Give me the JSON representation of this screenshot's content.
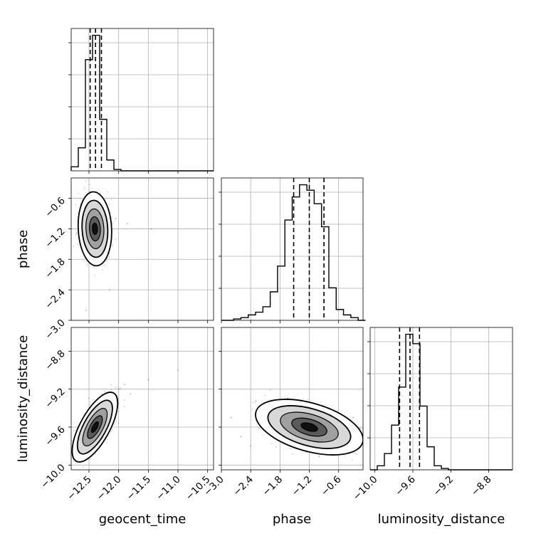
{
  "chart_data": [
    {
      "type": "histogram",
      "parameter": "geocent_time",
      "xlim": [
        -12.8,
        -10.4
      ],
      "xticks": [
        -12.5,
        -12.0,
        -11.5,
        -11.0,
        -10.5
      ],
      "bins": [
        -12.8,
        -12.68,
        -12.56,
        -12.44,
        -12.32,
        -12.2,
        -12.08,
        -11.96,
        -11.84
      ],
      "counts": [
        0.03,
        0.17,
        0.82,
        1.0,
        0.38,
        0.08,
        0.01,
        0.0
      ],
      "quantiles": [
        -12.48,
        -12.39,
        -12.29
      ],
      "grid": true
    },
    {
      "type": "histogram",
      "parameter": "phase",
      "xlim": [
        -3.0,
        -0.1
      ],
      "xticks": [
        -3.0,
        -2.4,
        -1.8,
        -1.2,
        -0.6
      ],
      "bins": [
        -2.9,
        -2.75,
        -2.6,
        -2.45,
        -2.3,
        -2.15,
        -2.0,
        -1.85,
        -1.7,
        -1.55,
        -1.4,
        -1.25,
        -1.1,
        -0.95,
        -0.8,
        -0.65,
        -0.5,
        -0.35,
        -0.2,
        -0.05
      ],
      "counts": [
        0.0,
        0.01,
        0.02,
        0.04,
        0.06,
        0.1,
        0.21,
        0.4,
        0.74,
        0.91,
        1.0,
        0.96,
        0.86,
        0.69,
        0.24,
        0.08,
        0.04,
        0.02,
        0.0
      ],
      "quantiles": [
        -1.52,
        -1.2,
        -0.9
      ],
      "grid": true
    },
    {
      "type": "histogram",
      "parameter": "luminosity_distance",
      "xlim": [
        -10.05,
        -8.55
      ],
      "xticks": [
        -10.0,
        -9.6,
        -9.2,
        -8.8
      ],
      "bins": [
        -10.05,
        -9.975,
        -9.9,
        -9.825,
        -9.75,
        -9.675,
        -9.6,
        -9.525,
        -9.45,
        -9.375,
        -9.3,
        -9.225,
        -9.15
      ],
      "counts": [
        0.0,
        0.03,
        0.12,
        0.33,
        0.61,
        1.0,
        0.93,
        0.47,
        0.17,
        0.03,
        0.01,
        0.0
      ],
      "quantiles": [
        -9.74,
        -9.63,
        -9.53
      ],
      "grid": true
    },
    {
      "type": "scatter",
      "x_parameter": "geocent_time",
      "y_parameter": "phase",
      "xlim": [
        -12.8,
        -10.4
      ],
      "ylim": [
        -3.0,
        -0.2
      ],
      "yticks": [
        -3.0,
        -2.4,
        -1.8,
        -1.2,
        -0.6
      ],
      "center": [
        -12.4,
        -1.2
      ],
      "contours": "density contours centred near (-12.4, -1.2)",
      "grid": true
    },
    {
      "type": "scatter",
      "x_parameter": "geocent_time",
      "y_parameter": "luminosity_distance",
      "xlim": [
        -12.8,
        -10.4
      ],
      "ylim": [
        -10.05,
        -8.55
      ],
      "yticks": [
        -10.0,
        -9.6,
        -9.2,
        -8.8
      ],
      "center": [
        -12.4,
        -9.6
      ],
      "contours": "tilted density contours centred near (-12.4, -9.6)",
      "grid": true
    },
    {
      "type": "scatter",
      "x_parameter": "phase",
      "y_parameter": "luminosity_distance",
      "xlim": [
        -3.0,
        -0.1
      ],
      "ylim": [
        -10.05,
        -8.55
      ],
      "center": [
        -1.2,
        -9.6
      ],
      "contours": "density contours centred near (-1.2, -9.6)",
      "grid": true
    }
  ],
  "labels": {
    "x0": "geocent_time",
    "x1": "phase",
    "x2": "luminosity_distance",
    "y1": "phase",
    "y2": "luminosity_distance"
  },
  "ticks": {
    "geocent_time": [
      "−12.5",
      "−12.0",
      "−11.5",
      "−11.0",
      "−10.5"
    ],
    "phase": [
      "−3.0",
      "−2.4",
      "−1.8",
      "−1.2",
      "−0.6"
    ],
    "luminosity_distance": [
      "−10.0",
      "−9.6",
      "−9.2",
      "−8.8"
    ]
  }
}
